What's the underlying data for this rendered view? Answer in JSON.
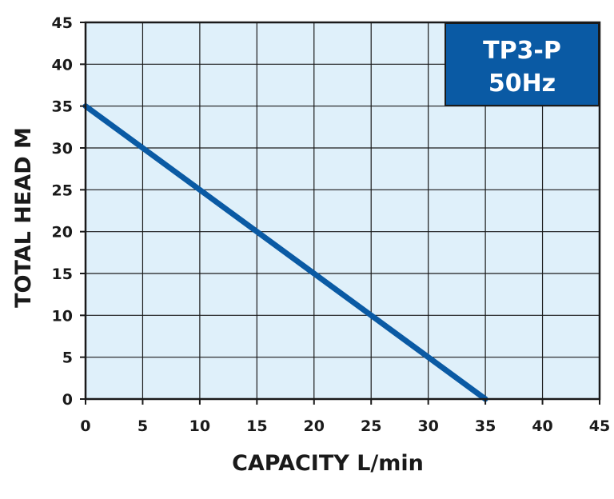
{
  "chart_data": {
    "type": "line",
    "title": "",
    "badge": [
      "TP3-P",
      "50Hz"
    ],
    "xlabel": "CAPACITY L/min",
    "ylabel": "TOTAL HEAD M",
    "xlim": [
      0,
      45
    ],
    "ylim": [
      0,
      45
    ],
    "x_ticks": [
      "0",
      "5",
      "10",
      "15",
      "20",
      "25",
      "30",
      "35",
      "40",
      "45"
    ],
    "y_ticks": [
      "0",
      "5",
      "10",
      "15",
      "20",
      "25",
      "30",
      "35",
      "40",
      "45"
    ],
    "grid": true,
    "series": [
      {
        "x": [
          0,
          35
        ],
        "y": [
          35,
          0
        ]
      }
    ],
    "colors": {
      "plot_background": "#dff0fa",
      "grid": "#1a1a1a",
      "line": "#0a5aa4",
      "badge_background": "#0a5aa4",
      "badge_text": "#ffffff"
    }
  }
}
